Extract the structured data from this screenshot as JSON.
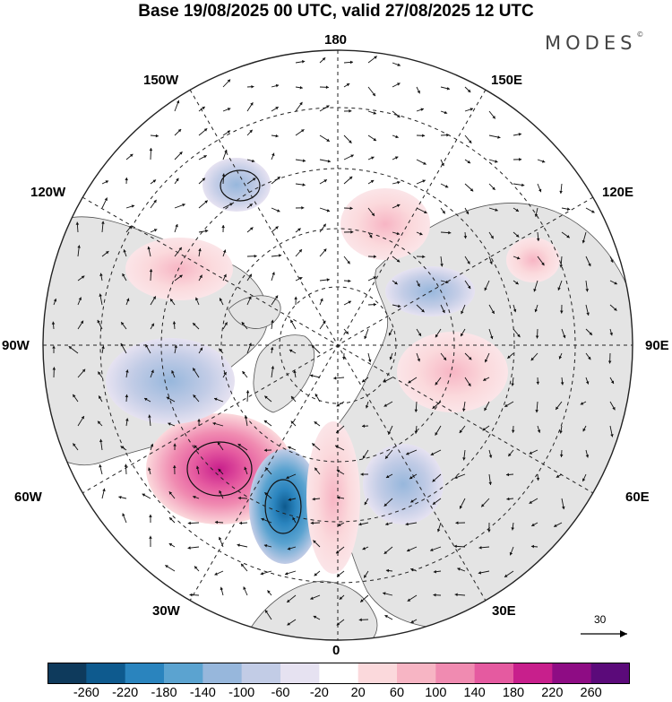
{
  "header": {
    "title": "Base 19/08/2025 00 UTC, valid 27/08/2025 12 UTC",
    "brand": "MODES",
    "brand_mark": "©"
  },
  "map": {
    "projection": "north polar stereographic",
    "longitude_labels": {
      "top": "180",
      "top_left": "150W",
      "top_right": "150E",
      "upper_left": "120W",
      "upper_right": "120E",
      "left": "90W",
      "right": "90E",
      "lower_left": "60W",
      "lower_right": "60E",
      "bottom_left": "30W",
      "bottom_right": "30E",
      "bottom": "0"
    },
    "wind_reference": {
      "value": "30"
    }
  },
  "colorbar": {
    "ticks": [
      "-260",
      "-220",
      "-180",
      "-140",
      "-100",
      "-60",
      "-20",
      "20",
      "60",
      "100",
      "140",
      "180",
      "220",
      "260"
    ],
    "colors": [
      "#0e3a5c",
      "#0e5a8e",
      "#2a84be",
      "#5ba3d0",
      "#97b7dc",
      "#c2cce6",
      "#e6e2f1",
      "#ffffff",
      "#fbd9dc",
      "#f7b5c4",
      "#f08bb1",
      "#e55aa0",
      "#c81f8c",
      "#8e0c84",
      "#5b0a7a"
    ]
  },
  "anomalies": [
    {
      "name": "atlantic-high",
      "sign": "positive",
      "intensity": "strong"
    },
    {
      "name": "atlantic-low",
      "sign": "negative",
      "intensity": "strong"
    },
    {
      "name": "hudson-low",
      "sign": "negative",
      "intensity": "moderate"
    },
    {
      "name": "alaska-low",
      "sign": "negative",
      "intensity": "moderate"
    },
    {
      "name": "europe-high",
      "sign": "positive",
      "intensity": "moderate"
    },
    {
      "name": "siberia-high",
      "sign": "positive",
      "intensity": "weak"
    },
    {
      "name": "scandinavia-low",
      "sign": "negative",
      "intensity": "weak"
    }
  ]
}
